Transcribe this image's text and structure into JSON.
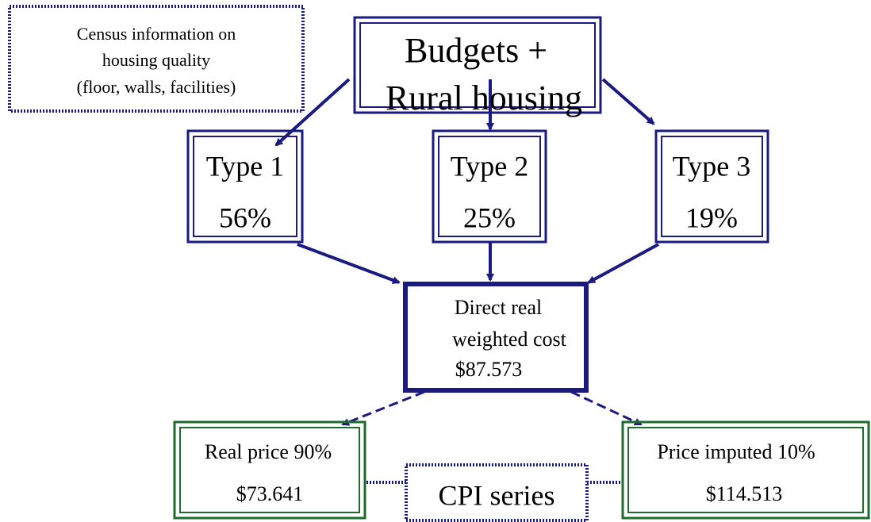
{
  "nodes": [
    {
      "lines": [
        "Census information on",
        "housing quality",
        "(floor, walls, facilities)"
      ]
    },
    {
      "lines": [
        "Budgets +",
        "Rural housing"
      ]
    },
    {
      "lines": [
        "Type 1",
        "56%"
      ]
    },
    {
      "lines": [
        "Type 2",
        "25%"
      ]
    },
    {
      "lines": [
        "Type 3",
        "19%"
      ]
    },
    {
      "lines": [
        "Direct real",
        "weighted cost",
        "$87.573"
      ]
    },
    {
      "lines": [
        "Real price 90%",
        "$73.641"
      ]
    },
    {
      "lines": [
        "Price imputed 10%",
        "$114.513"
      ]
    },
    {
      "lines": [
        "CPI series"
      ]
    }
  ]
}
